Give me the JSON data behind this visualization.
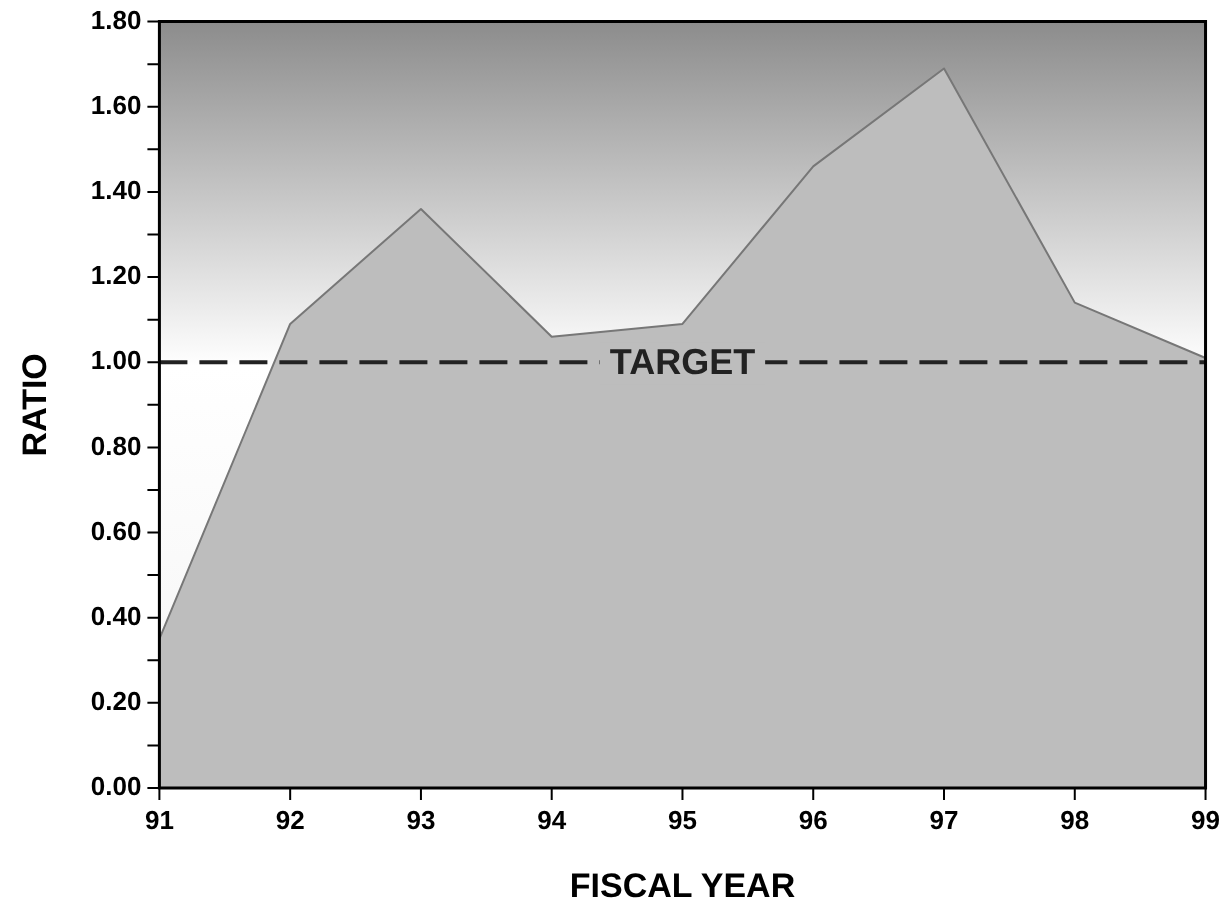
{
  "chart_data": {
    "type": "area",
    "xlabel": "FISCAL YEAR",
    "ylabel": "RATIO",
    "categories": [
      "91",
      "92",
      "93",
      "94",
      "95",
      "96",
      "97",
      "98",
      "99"
    ],
    "series": [
      {
        "color": "#bdbdbd",
        "values": [
          0.35,
          1.09,
          1.36,
          1.06,
          1.09,
          1.46,
          1.69,
          1.14,
          1.01
        ]
      }
    ],
    "ylim": [
      0,
      1.8
    ],
    "yticks": [
      {
        "value": 0,
        "label": "0.00"
      },
      {
        "value": 0.1,
        "label": null
      },
      {
        "value": 0.2,
        "label": "0.20"
      },
      {
        "value": 0.3,
        "label": null
      },
      {
        "value": 0.4,
        "label": "0.40"
      },
      {
        "value": 0.5,
        "label": null
      },
      {
        "value": 0.6,
        "label": "0.60"
      },
      {
        "value": 0.7,
        "label": null
      },
      {
        "value": 0.8,
        "label": "0.80"
      },
      {
        "value": 0.9,
        "label": null
      },
      {
        "value": 1,
        "label": "1.00"
      },
      {
        "value": 1.1,
        "label": null
      },
      {
        "value": 1.2,
        "label": "1.20"
      },
      {
        "value": 1.3,
        "label": null
      },
      {
        "value": 1.4,
        "label": "1.40"
      },
      {
        "value": 1.5,
        "label": null
      },
      {
        "value": 1.6,
        "label": "1.60"
      },
      {
        "value": 1.7,
        "label": null
      },
      {
        "value": 1.8,
        "label": "1.80"
      }
    ],
    "ref_lines": [
      {
        "axis": "y",
        "value": 1,
        "label": "TARGET",
        "color": "#222222",
        "line_style": "dashed"
      }
    ],
    "grid": false,
    "legend": false
  }
}
